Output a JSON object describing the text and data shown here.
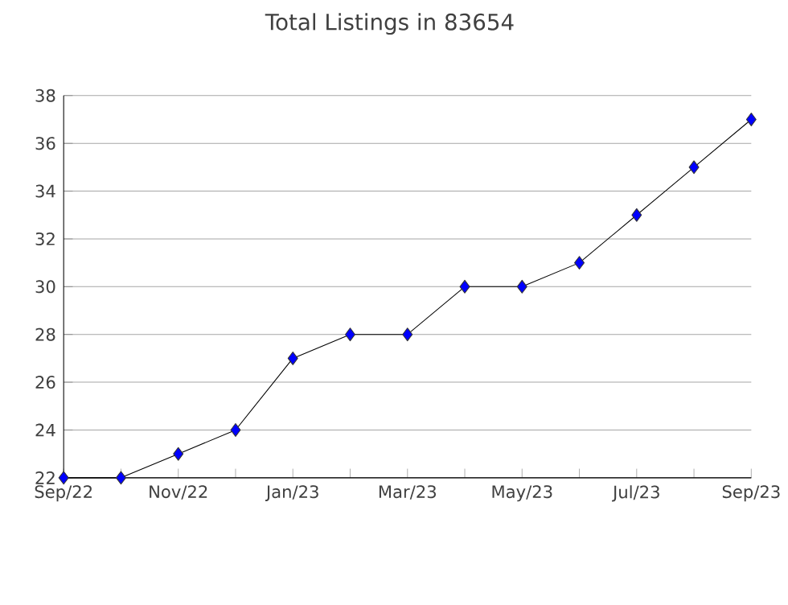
{
  "chart_data": {
    "type": "line",
    "title": "Total Listings in 83654",
    "categories": [
      "Sep/22",
      null,
      "Nov/22",
      null,
      "Jan/23",
      null,
      "Mar/23",
      null,
      "May/23",
      null,
      "Jul/23",
      null,
      "Sep/23"
    ],
    "series": [
      {
        "color": "#0000ff",
        "values": [
          22,
          22,
          23,
          24,
          27,
          28,
          28,
          30,
          30,
          31,
          33,
          35,
          37
        ]
      }
    ],
    "ylim": [
      22,
      38
    ],
    "yticks": [
      22,
      24,
      26,
      28,
      30,
      32,
      34,
      36,
      38
    ],
    "grid": "y",
    "marker": "diamond",
    "line_style": "solid"
  }
}
